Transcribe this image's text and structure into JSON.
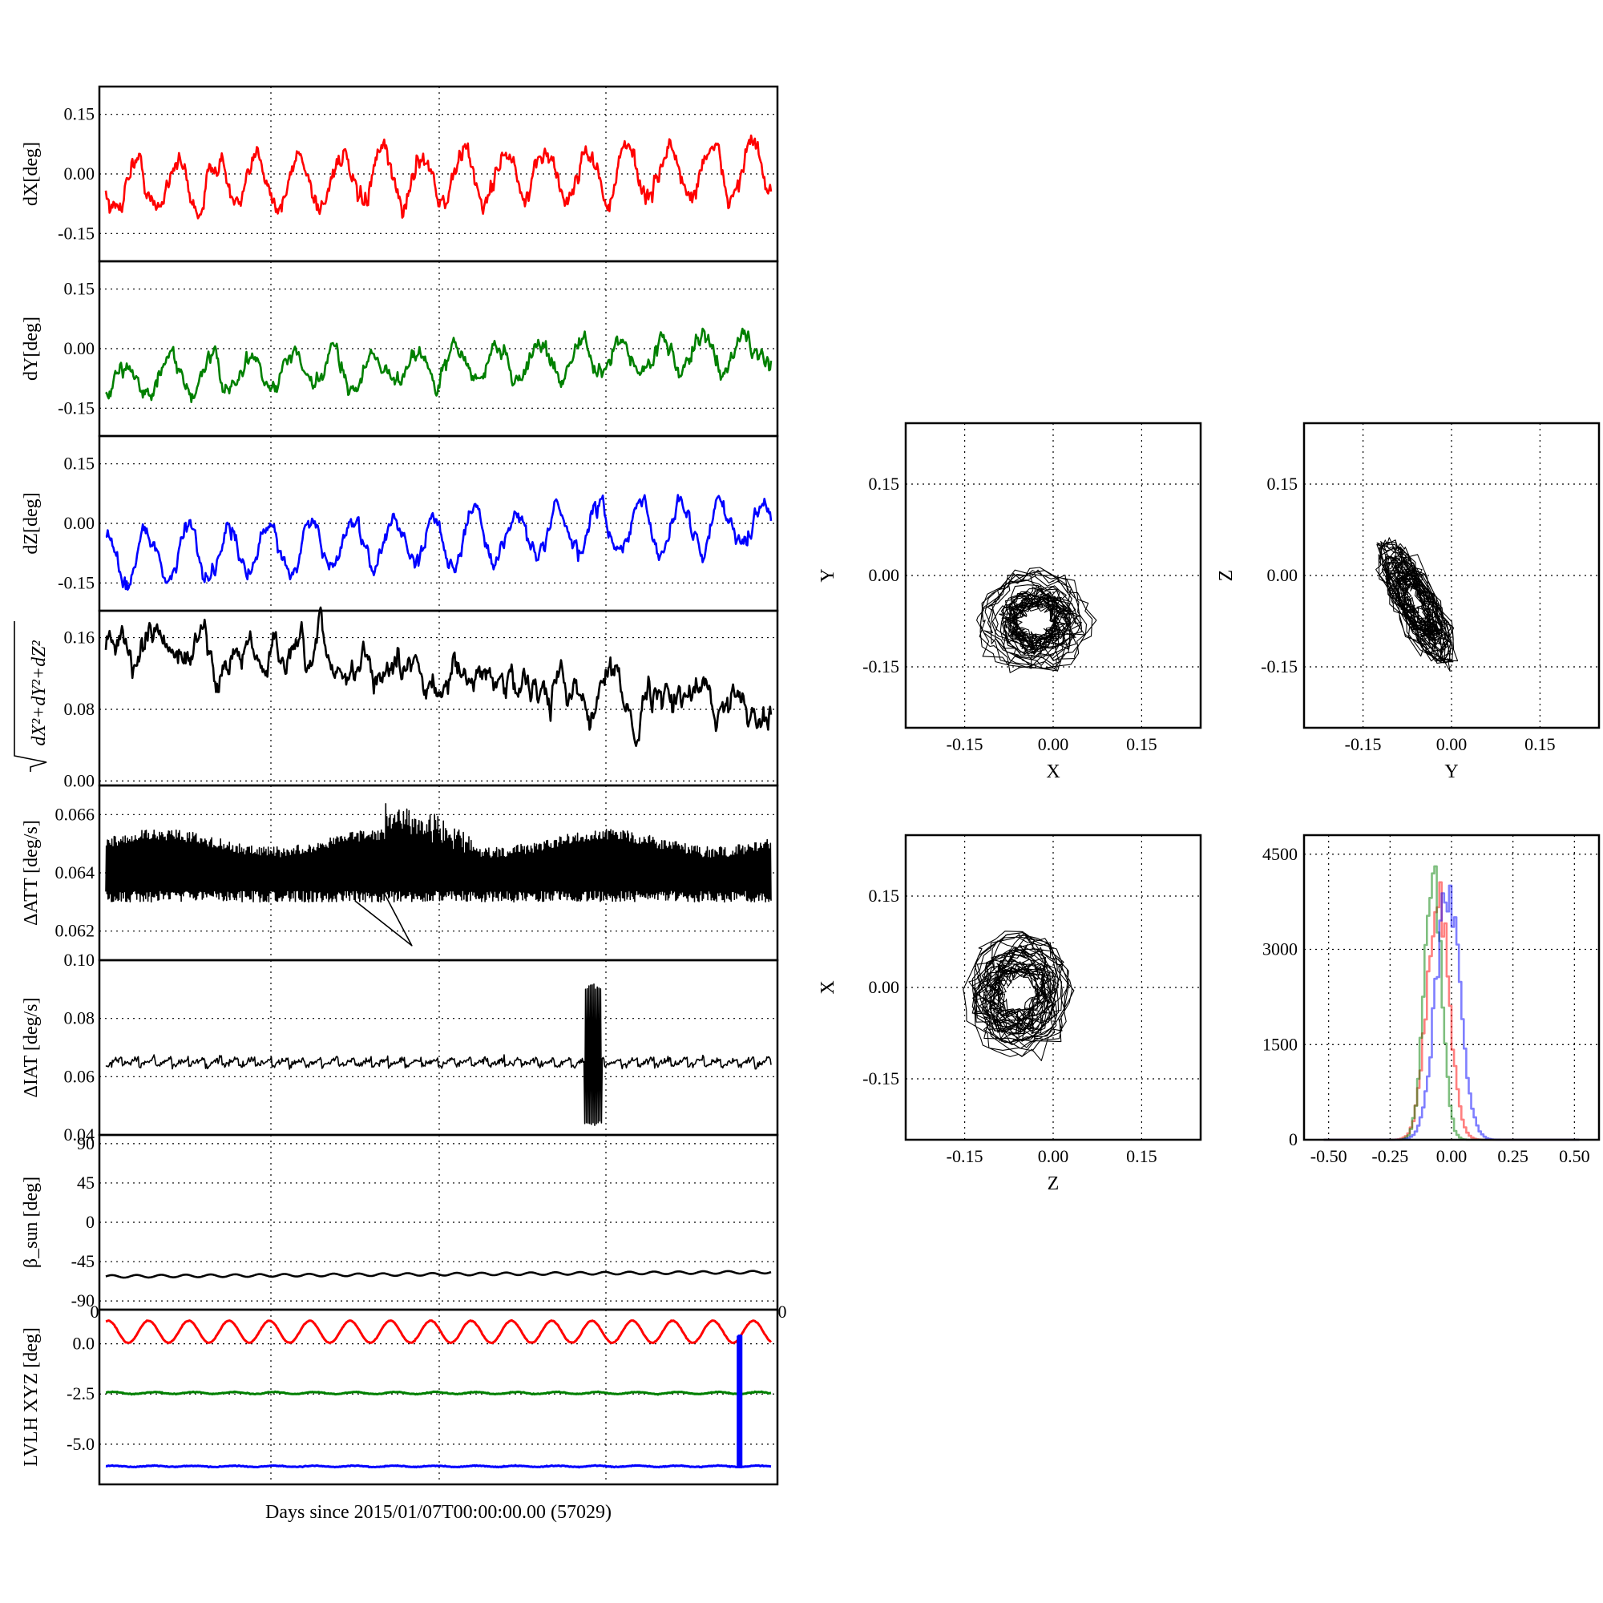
{
  "chart_data": [
    {
      "type": "line",
      "ylabel": "dX[deg]",
      "yticks": [
        "-0.15",
        "0.00",
        "0.15"
      ],
      "ylim": [
        -0.22,
        0.22
      ],
      "series": [
        {
          "color": "#ff0000",
          "mean": -0.03,
          "amplitude": 0.065,
          "cycles": 16.2,
          "phase": 3.3,
          "drift": 0.04,
          "noise": 0.012
        }
      ]
    },
    {
      "type": "line",
      "ylabel": "dY[deg]",
      "yticks": [
        "-0.15",
        "0.00",
        "0.15"
      ],
      "ylim": [
        -0.22,
        0.22
      ],
      "series": [
        {
          "color": "#008000",
          "mean": -0.08,
          "amplitude": 0.045,
          "cycles": 16.2,
          "phase": 4.4,
          "drift": 0.075,
          "noise": 0.01
        }
      ]
    },
    {
      "type": "line",
      "ylabel": "dZ[deg]",
      "yticks": [
        "-0.15",
        "0.00",
        "0.15"
      ],
      "ylim": [
        -0.22,
        0.22
      ],
      "series": [
        {
          "color": "#0000ff",
          "mean": -0.085,
          "amplitude": 0.065,
          "cycles": 16.2,
          "phase": 1.6,
          "drift": 0.09,
          "noise": 0.01
        }
      ]
    },
    {
      "type": "line",
      "ylabel": "√(dX²+dY²+dZ²)",
      "yticks": [
        "0.00",
        "0.08",
        "0.16"
      ],
      "ylim": [
        -0.005,
        0.19
      ],
      "series": [
        {
          "color": "#000000",
          "start": 0.15,
          "end": 0.085,
          "noise": 0.012
        }
      ]
    },
    {
      "type": "line",
      "ylabel": "ΔATT [deg/s]",
      "yticks": [
        "0.062",
        "0.064",
        "0.066"
      ],
      "ylim": [
        0.061,
        0.067
      ],
      "series": [
        {
          "color": "#000000",
          "upper": 0.0648,
          "lower": 0.063,
          "spike_min": 0.0615,
          "spike_max": 0.0665
        }
      ]
    },
    {
      "type": "line",
      "ylabel": "ΔIAT [deg/s]",
      "yticks": [
        "0.04",
        "0.06",
        "0.08",
        "0.10"
      ],
      "ylim": [
        0.04,
        0.1
      ],
      "series": [
        {
          "color": "#000000",
          "low": 0.0635,
          "high": 0.0665,
          "teeth": 40,
          "burst_x": [
            0.72,
            0.745
          ],
          "burst_range": [
            0.043,
            0.092
          ]
        }
      ]
    },
    {
      "type": "line",
      "ylabel": "β_sun [deg]",
      "yticks": [
        "-90",
        "-45",
        "0",
        "45",
        "90"
      ],
      "ylim": [
        -100,
        100
      ],
      "overflow_labels": [
        "0",
        "0"
      ],
      "series": [
        {
          "color": "#000000",
          "start": -62,
          "end": -57,
          "amplitude": 1.5,
          "cycles": 27
        }
      ]
    },
    {
      "type": "line",
      "ylabel": "LVLH XYZ [deg]",
      "xlabel": "Days since 2015/01/07T00:00:00.00 (57029)",
      "yticks": [
        "-5.0",
        "-2.5",
        "0.0"
      ],
      "ylim": [
        -7,
        1.7
      ],
      "series": [
        {
          "color": "#ff0000",
          "mean": 0.6,
          "amplitude": 0.55,
          "cycles": 16.5
        },
        {
          "color": "#008000",
          "mean": -2.45,
          "amplitude": 0.05,
          "cycles": 16.5
        },
        {
          "color": "#0000ff",
          "mean": -6.1,
          "amplitude": 0.03,
          "cycles": 16.5,
          "spike_x": 0.952,
          "spike_top": 0.4
        }
      ]
    },
    {
      "type": "scatter",
      "xlabel": "X",
      "ylabel": "Y",
      "xticks": [
        "-0.15",
        "0.00",
        "0.15"
      ],
      "yticks": [
        "-0.15",
        "0.00",
        "0.15"
      ],
      "xlim": [
        -0.25,
        0.25
      ],
      "ylim": [
        -0.25,
        0.25
      ],
      "cloud": {
        "cx": -0.03,
        "cy": -0.075,
        "rx": 0.09,
        "ry": 0.08,
        "tilt": 0
      }
    },
    {
      "type": "scatter",
      "xlabel": "Y",
      "ylabel": "Z",
      "xticks": [
        "-0.15",
        "0.00",
        "0.15"
      ],
      "yticks": [
        "-0.15",
        "0.00",
        "0.15"
      ],
      "xlim": [
        -0.25,
        0.25
      ],
      "ylim": [
        -0.25,
        0.25
      ],
      "cloud": {
        "cx": -0.06,
        "cy": -0.045,
        "rx": 0.03,
        "ry": 0.11,
        "tilt": 0.5
      }
    },
    {
      "type": "scatter",
      "xlabel": "Z",
      "ylabel": "X",
      "xticks": [
        "-0.15",
        "0.00",
        "0.15"
      ],
      "yticks": [
        "-0.15",
        "0.00",
        "0.15"
      ],
      "xlim": [
        -0.25,
        0.25
      ],
      "ylim": [
        -0.25,
        0.25
      ],
      "cloud": {
        "cx": -0.06,
        "cy": -0.01,
        "rx": 0.085,
        "ry": 0.095,
        "tilt": 0
      }
    },
    {
      "type": "histogram",
      "xticks": [
        "-0.50",
        "-0.25",
        "0.00",
        "0.25",
        "0.50"
      ],
      "yticks": [
        "0",
        "1500",
        "3000",
        "4500"
      ],
      "xlim": [
        -0.6,
        0.6
      ],
      "ylim": [
        0,
        4800
      ],
      "series": [
        {
          "color": "#ff0000",
          "center": -0.06,
          "sigma": 0.045,
          "peak": 4300
        },
        {
          "color": "#008000",
          "center": -0.08,
          "sigma": 0.035,
          "peak": 4700
        },
        {
          "color": "#0000ff",
          "center": -0.02,
          "sigma": 0.05,
          "peak": 4300
        }
      ]
    }
  ]
}
